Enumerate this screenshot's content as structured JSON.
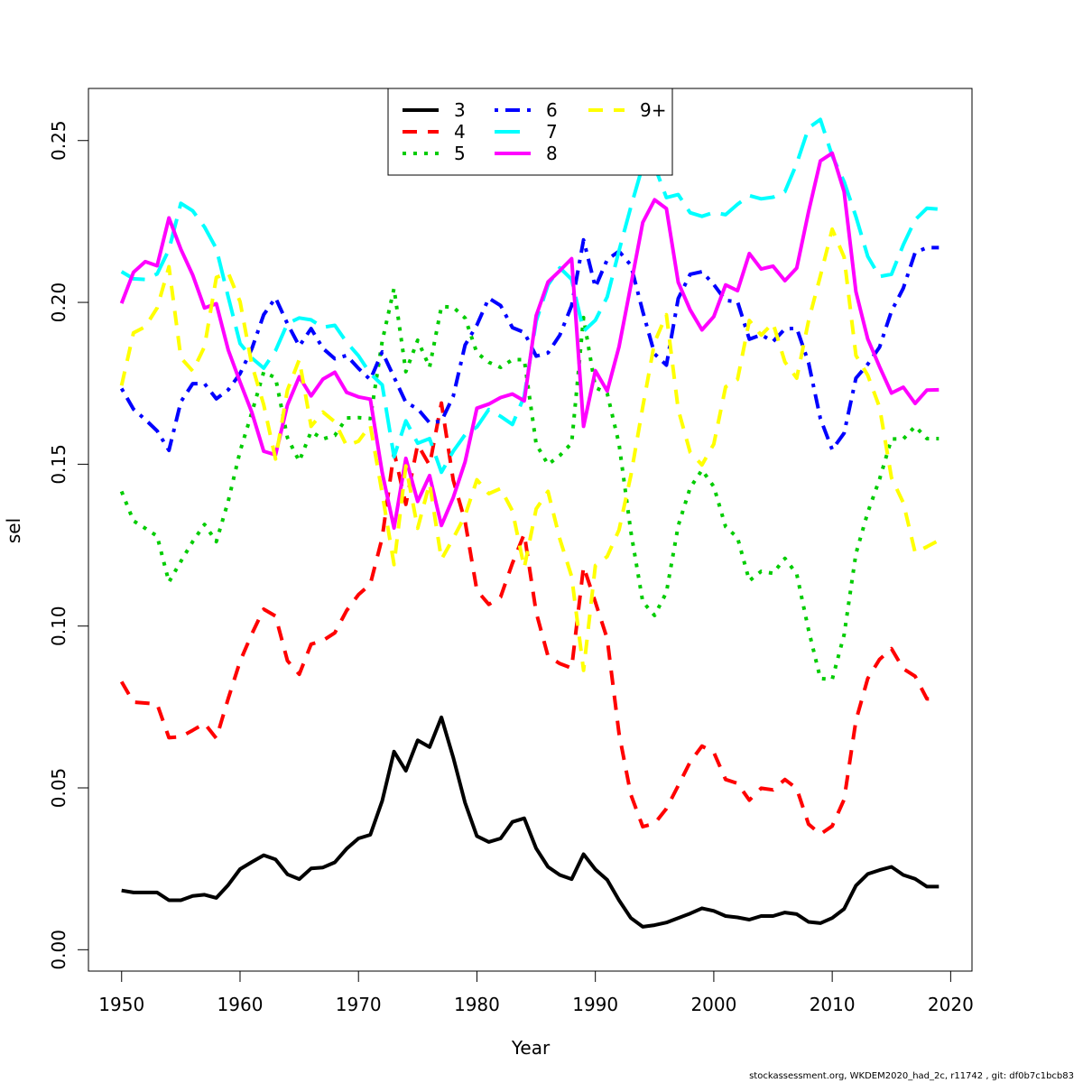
{
  "chart_data": {
    "type": "line",
    "title": "",
    "xlabel": "Year",
    "ylabel": "sel",
    "xlim": [
      1947.2,
      2021.8
    ],
    "ylim": [
      -0.0066,
      0.2661
    ],
    "x_ticks": [
      1950,
      1960,
      1970,
      1980,
      1990,
      2000,
      2010,
      2020
    ],
    "y_ticks": [
      0.0,
      0.05,
      0.1,
      0.15,
      0.2,
      0.25
    ],
    "y_tick_labels": [
      "0.00",
      "0.05",
      "0.10",
      "0.15",
      "0.20",
      "0.25"
    ],
    "legend_position": "top-center",
    "grid": false,
    "x": [
      1950,
      1951,
      1952,
      1953,
      1954,
      1955,
      1956,
      1957,
      1958,
      1959,
      1960,
      1961,
      1962,
      1963,
      1964,
      1965,
      1966,
      1967,
      1968,
      1969,
      1970,
      1971,
      1972,
      1973,
      1974,
      1975,
      1976,
      1977,
      1978,
      1979,
      1980,
      1981,
      1982,
      1983,
      1984,
      1985,
      1986,
      1987,
      1988,
      1989,
      1990,
      1991,
      1992,
      1993,
      1994,
      1995,
      1996,
      1997,
      1998,
      1999,
      2000,
      2001,
      2002,
      2003,
      2004,
      2005,
      2006,
      2007,
      2008,
      2009,
      2010,
      2011,
      2012,
      2013,
      2014,
      2015,
      2016,
      2017,
      2018,
      2019
    ],
    "series": [
      {
        "name": "3",
        "color": "#000000",
        "dash": "solid",
        "values": [
          0.0183,
          0.0177,
          0.0177,
          0.0177,
          0.0153,
          0.0153,
          0.0166,
          0.017,
          0.016,
          0.02,
          0.0249,
          0.0271,
          0.0292,
          0.0279,
          0.0233,
          0.0218,
          0.0251,
          0.0254,
          0.027,
          0.0312,
          0.0344,
          0.0355,
          0.046,
          0.0612,
          0.0553,
          0.0647,
          0.0626,
          0.0718,
          0.0594,
          0.0454,
          0.0351,
          0.0333,
          0.0344,
          0.0395,
          0.0406,
          0.0313,
          0.0256,
          0.0231,
          0.0218,
          0.0295,
          0.0248,
          0.0216,
          0.0153,
          0.0098,
          0.0071,
          0.0076,
          0.0084,
          0.0098,
          0.0112,
          0.0128,
          0.012,
          0.0104,
          0.01,
          0.0093,
          0.0104,
          0.0104,
          0.0115,
          0.011,
          0.0086,
          0.0082,
          0.0098,
          0.0126,
          0.0198,
          0.0234,
          0.0246,
          0.0256,
          0.0231,
          0.0219,
          0.0195,
          0.0195
        ]
      },
      {
        "name": "4",
        "color": "#ff0000",
        "dash": "dashed",
        "values": [
          0.0828,
          0.0765,
          0.0762,
          0.0759,
          0.0655,
          0.0658,
          0.0678,
          0.0699,
          0.0653,
          0.0776,
          0.0891,
          0.0976,
          0.1052,
          0.1031,
          0.0893,
          0.0851,
          0.0944,
          0.0955,
          0.0979,
          0.1048,
          0.1097,
          0.1129,
          0.1273,
          0.1538,
          0.1376,
          0.1561,
          0.1497,
          0.1689,
          0.1451,
          0.1324,
          0.111,
          0.1067,
          0.109,
          0.1194,
          0.1285,
          0.1042,
          0.0907,
          0.0884,
          0.087,
          0.1184,
          0.1074,
          0.0961,
          0.0668,
          0.0479,
          0.038,
          0.039,
          0.0436,
          0.0507,
          0.058,
          0.0629,
          0.061,
          0.0526,
          0.0514,
          0.0462,
          0.0499,
          0.0494,
          0.0526,
          0.0498,
          0.0388,
          0.0357,
          0.0382,
          0.0464,
          0.0708,
          0.0838,
          0.0897,
          0.093,
          0.0868,
          0.0845,
          0.0775,
          0.0775
        ]
      },
      {
        "name": "5",
        "color": "#00cc00",
        "dash": "dotted",
        "values": [
          0.1416,
          0.1325,
          0.1302,
          0.1278,
          0.1136,
          0.12,
          0.1261,
          0.1314,
          0.1261,
          0.1386,
          0.154,
          0.166,
          0.1785,
          0.1767,
          0.1582,
          0.1509,
          0.1601,
          0.1578,
          0.1589,
          0.1643,
          0.1644,
          0.1641,
          0.188,
          0.2043,
          0.1786,
          0.1883,
          0.18,
          0.1987,
          0.1985,
          0.1952,
          0.1844,
          0.1815,
          0.1799,
          0.1823,
          0.1823,
          0.1562,
          0.1499,
          0.1527,
          0.1565,
          0.1953,
          0.1737,
          0.1719,
          0.1563,
          0.1292,
          0.1075,
          0.1033,
          0.1104,
          0.131,
          0.1427,
          0.1482,
          0.1431,
          0.1307,
          0.1273,
          0.114,
          0.1169,
          0.1163,
          0.1209,
          0.1161,
          0.0988,
          0.0838,
          0.0835,
          0.0973,
          0.1224,
          0.1351,
          0.1454,
          0.1578,
          0.1578,
          0.1617,
          0.1579,
          0.1579
        ]
      },
      {
        "name": "6",
        "color": "#0000ff",
        "dash": "dotdash",
        "values": [
          0.1734,
          0.167,
          0.1638,
          0.1603,
          0.1543,
          0.1693,
          0.1749,
          0.1749,
          0.1702,
          0.173,
          0.178,
          0.1857,
          0.1962,
          0.2014,
          0.1934,
          0.1865,
          0.1919,
          0.1858,
          0.1826,
          0.1836,
          0.1796,
          0.1761,
          0.1847,
          0.1769,
          0.1691,
          0.1671,
          0.1628,
          0.1633,
          0.171,
          0.1868,
          0.193,
          0.2013,
          0.199,
          0.1922,
          0.1907,
          0.1834,
          0.1844,
          0.1899,
          0.199,
          0.2193,
          0.2047,
          0.2132,
          0.2158,
          0.2115,
          0.1972,
          0.1841,
          0.1806,
          0.2012,
          0.2087,
          0.2095,
          0.2055,
          0.2006,
          0.2002,
          0.1886,
          0.19,
          0.1879,
          0.1918,
          0.192,
          0.1814,
          0.1641,
          0.1545,
          0.1596,
          0.1766,
          0.1809,
          0.1862,
          0.1973,
          0.2044,
          0.2154,
          0.2169,
          0.2169
        ]
      },
      {
        "name": "7",
        "color": "#00ffff",
        "dash": "longdash",
        "values": [
          0.2095,
          0.2073,
          0.2071,
          0.2088,
          0.2163,
          0.2306,
          0.2283,
          0.2233,
          0.2166,
          0.2017,
          0.1873,
          0.1828,
          0.1797,
          0.1851,
          0.1935,
          0.1952,
          0.1946,
          0.1923,
          0.1929,
          0.1877,
          0.1835,
          0.178,
          0.1745,
          0.1523,
          0.1634,
          0.1565,
          0.1579,
          0.1475,
          0.154,
          0.1591,
          0.1615,
          0.1669,
          0.1648,
          0.1623,
          0.171,
          0.1942,
          0.2054,
          0.2107,
          0.2071,
          0.1911,
          0.1945,
          0.2017,
          0.216,
          0.2295,
          0.2423,
          0.2421,
          0.2324,
          0.2333,
          0.2277,
          0.2266,
          0.2278,
          0.2271,
          0.2303,
          0.233,
          0.232,
          0.2325,
          0.2342,
          0.2429,
          0.2539,
          0.2565,
          0.2453,
          0.2373,
          0.2265,
          0.2142,
          0.208,
          0.2087,
          0.2178,
          0.2255,
          0.2291,
          0.2288
        ]
      },
      {
        "name": "8",
        "color": "#ff00ff",
        "dash": "solid",
        "values": [
          0.1997,
          0.2093,
          0.2126,
          0.2113,
          0.2261,
          0.2164,
          0.2085,
          0.1983,
          0.1996,
          0.1853,
          0.1754,
          0.166,
          0.154,
          0.1529,
          0.1683,
          0.177,
          0.1711,
          0.1763,
          0.1784,
          0.1722,
          0.1708,
          0.1701,
          0.1474,
          0.1303,
          0.1518,
          0.1385,
          0.1465,
          0.1311,
          0.1397,
          0.1507,
          0.1673,
          0.1686,
          0.1706,
          0.1717,
          0.1696,
          0.1959,
          0.2063,
          0.2098,
          0.2135,
          0.1617,
          0.1789,
          0.1726,
          0.1863,
          0.2053,
          0.2247,
          0.2317,
          0.229,
          0.2062,
          0.1977,
          0.1915,
          0.1956,
          0.2054,
          0.2036,
          0.2151,
          0.2103,
          0.2112,
          0.2067,
          0.2106,
          0.228,
          0.2437,
          0.2461,
          0.2342,
          0.2033,
          0.1887,
          0.1801,
          0.172,
          0.1738,
          0.1688,
          0.1729,
          0.173
        ]
      },
      {
        "name": "9+",
        "color": "#ffff00",
        "dash": "dashed",
        "values": [
          0.1743,
          0.1906,
          0.1925,
          0.1983,
          0.211,
          0.1829,
          0.1788,
          0.1863,
          0.2077,
          0.2091,
          0.2002,
          0.1807,
          0.1684,
          0.1516,
          0.1729,
          0.1823,
          0.1617,
          0.1661,
          0.1631,
          0.1557,
          0.1571,
          0.162,
          0.141,
          0.119,
          0.1495,
          0.1302,
          0.1441,
          0.1206,
          0.1271,
          0.1341,
          0.1452,
          0.1409,
          0.1425,
          0.1356,
          0.118,
          0.1362,
          0.1416,
          0.1269,
          0.1153,
          0.0863,
          0.1187,
          0.1215,
          0.1297,
          0.1465,
          0.1677,
          0.1877,
          0.1962,
          0.1669,
          0.1537,
          0.1498,
          0.1562,
          0.1739,
          0.1762,
          0.1944,
          0.1899,
          0.1936,
          0.1816,
          0.1766,
          0.1943,
          0.2082,
          0.2226,
          0.214,
          0.1836,
          0.1775,
          0.1676,
          0.1458,
          0.1381,
          0.1227,
          0.1245,
          0.1265
        ]
      }
    ]
  },
  "footer": "stockassessment.org, WKDEM2020_had_2c, r11742 , git: df0b7c1bcb83"
}
